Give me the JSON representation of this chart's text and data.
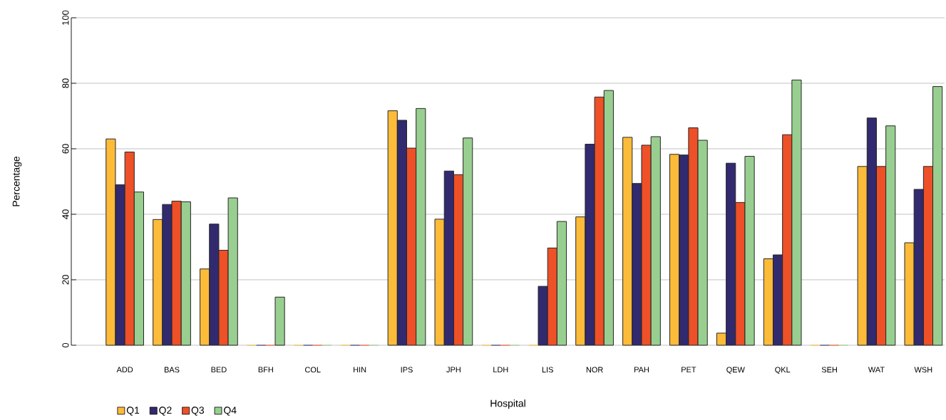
{
  "chart_data": {
    "type": "bar",
    "xlabel": "Hospital",
    "ylabel": "Percentage",
    "categories": [
      "ADD",
      "BAS",
      "BED",
      "BFH",
      "COL",
      "HIN",
      "IPS",
      "JPH",
      "LDH",
      "LIS",
      "NOR",
      "PAH",
      "PET",
      "QEW",
      "QKL",
      "SEH",
      "WAT",
      "WSH"
    ],
    "series": [
      {
        "name": "Q1",
        "color": "#fdbb3a",
        "values": [
          63,
          38.4,
          23.3,
          0,
          0,
          0,
          71.6,
          38.5,
          0,
          0,
          39.2,
          63.5,
          58.3,
          3.7,
          26.4,
          0,
          54.6,
          31.3
        ]
      },
      {
        "name": "Q2",
        "color": "#312a6f",
        "values": [
          49,
          43,
          37,
          0,
          0,
          0,
          68.7,
          53.2,
          0,
          18,
          61.4,
          49.4,
          58.1,
          55.6,
          27.6,
          0,
          69.4,
          47.6
        ]
      },
      {
        "name": "Q3",
        "color": "#ee5028",
        "values": [
          59,
          44,
          29,
          0,
          0,
          0,
          60.2,
          52.1,
          0,
          29.7,
          75.8,
          61.1,
          66.4,
          43.6,
          64.3,
          0,
          54.6,
          54.6
        ]
      },
      {
        "name": "Q4",
        "color": "#98cf90",
        "values": [
          46.8,
          43.8,
          45,
          14.7,
          0,
          0,
          72.3,
          63.3,
          0,
          37.8,
          77.8,
          63.7,
          62.6,
          57.7,
          81,
          0,
          67,
          79
        ]
      }
    ],
    "ylim": [
      0,
      100
    ],
    "yticks": [
      0,
      20,
      40,
      60,
      80,
      100
    ],
    "grid": "y",
    "legend": "bottom left"
  }
}
